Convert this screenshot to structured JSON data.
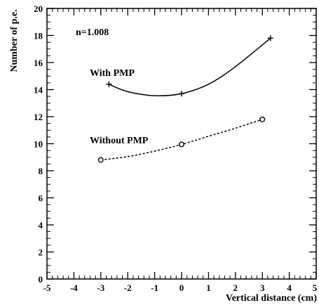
{
  "chart_data": {
    "type": "line",
    "title": "",
    "xlabel": "Vertical distance (cm)",
    "ylabel": "Number of p.e.",
    "xlim": [
      -5,
      5
    ],
    "ylim": [
      0,
      20
    ],
    "xticks": [
      -5,
      -4,
      -3,
      -2,
      -1,
      0,
      1,
      2,
      3,
      4,
      5
    ],
    "yticks": [
      0,
      2,
      4,
      6,
      8,
      10,
      12,
      14,
      16,
      18,
      20
    ],
    "annotation": "n=1.008",
    "grid": false,
    "series": [
      {
        "name": "With PMP",
        "marker": "plus",
        "line_style": "solid",
        "points": [
          [
            -2.7,
            14.4
          ],
          [
            0.0,
            13.7
          ],
          [
            3.3,
            17.8
          ]
        ],
        "fit_curve": [
          [
            -2.7,
            14.4
          ],
          [
            -2.0,
            13.85
          ],
          [
            -1.0,
            13.55
          ],
          [
            0.0,
            13.7
          ],
          [
            1.0,
            14.4
          ],
          [
            2.0,
            15.7
          ],
          [
            3.3,
            17.8
          ]
        ]
      },
      {
        "name": "Without PMP",
        "marker": "circle",
        "line_style": "dashed",
        "points": [
          [
            -3.0,
            8.8
          ],
          [
            0.0,
            9.95
          ],
          [
            3.0,
            11.8
          ]
        ],
        "fit_curve": [
          [
            -3.0,
            8.8
          ],
          [
            -2.0,
            9.05
          ],
          [
            -1.0,
            9.45
          ],
          [
            0.0,
            9.95
          ],
          [
            1.0,
            10.55
          ],
          [
            2.0,
            11.15
          ],
          [
            3.0,
            11.8
          ]
        ]
      }
    ]
  }
}
